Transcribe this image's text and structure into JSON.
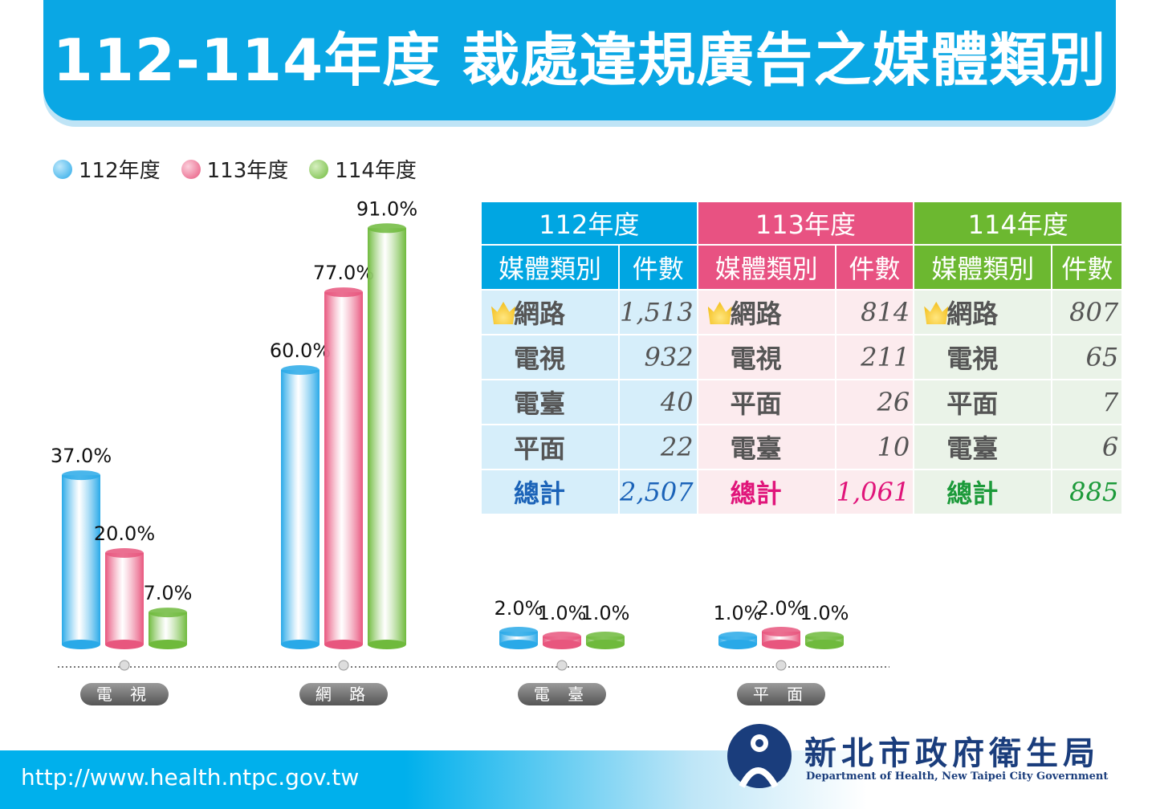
{
  "title": "112-114年度 裁處違規廣告之媒體類別",
  "chart_data": {
    "type": "bar",
    "title": "112-114年度 裁處違規廣告之媒體類別",
    "categories": [
      "電 視",
      "網 路",
      "電 臺",
      "平 面"
    ],
    "series": [
      {
        "name": "112年度",
        "color": "#29a9e8",
        "values": [
          37.0,
          60.0,
          2.0,
          1.0
        ],
        "labels": [
          "37.0%",
          "60.0%",
          "2.0%",
          "1.0%"
        ]
      },
      {
        "name": "113年度",
        "color": "#e8567e",
        "values": [
          20.0,
          77.0,
          1.0,
          2.0
        ],
        "labels": [
          "20.0%",
          "77.0%",
          "1.0%",
          "2.0%"
        ]
      },
      {
        "name": "114年度",
        "color": "#6fba3c",
        "values": [
          7.0,
          91.0,
          1.0,
          1.0
        ],
        "labels": [
          "7.0%",
          "91.0%",
          "1.0%",
          "1.0%"
        ]
      }
    ],
    "ylim": [
      0,
      100
    ],
    "legend": "top-left",
    "grid": false
  },
  "table": {
    "years": [
      {
        "year": "112年度",
        "color": "#00a6e2",
        "bg": "#d6eefa",
        "total_color": "#1b63b8",
        "col1": "媒體類別",
        "col2": "件數",
        "rows": [
          [
            "網路",
            "1,513"
          ],
          [
            "電視",
            "932"
          ],
          [
            "電臺",
            "40"
          ],
          [
            "平面",
            "22"
          ]
        ],
        "total": [
          "總計",
          "2,507"
        ]
      },
      {
        "year": "113年度",
        "color": "#e85282",
        "bg": "#fcebee",
        "total_color": "#e0157a",
        "col1": "媒體類別",
        "col2": "件數",
        "rows": [
          [
            "網路",
            "814"
          ],
          [
            "電視",
            "211"
          ],
          [
            "平面",
            "26"
          ],
          [
            "電臺",
            "10"
          ]
        ],
        "total": [
          "總計",
          "1,061"
        ]
      },
      {
        "year": "114年度",
        "color": "#6cb830",
        "bg": "#eaf3e8",
        "total_color": "#1c9a3a",
        "col1": "媒體類別",
        "col2": "件數",
        "rows": [
          [
            "網路",
            "807"
          ],
          [
            "電視",
            "65"
          ],
          [
            "平面",
            "7"
          ],
          [
            "電臺",
            "6"
          ]
        ],
        "total": [
          "總計",
          "885"
        ]
      }
    ]
  },
  "footer": {
    "url": "http://www.health.ntpc.gov.tw",
    "org_zh": "新北市政府衛生局",
    "org_en": "Department of Health, New Taipei City Government"
  }
}
